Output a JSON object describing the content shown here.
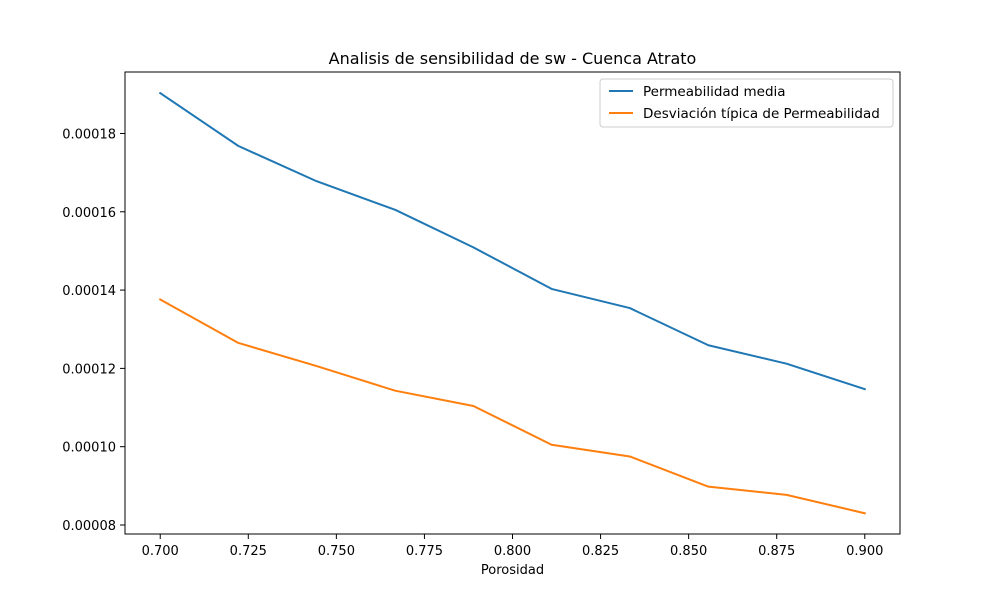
{
  "chart_data": {
    "type": "line",
    "title": "Analisis de sensibilidad de sw - Cuenca Atrato",
    "xlabel": "Porosidad",
    "ylabel": "",
    "x": [
      0.7,
      0.7222,
      0.7444,
      0.7667,
      0.7889,
      0.8111,
      0.8333,
      0.8556,
      0.8778,
      0.9
    ],
    "series": [
      {
        "name": "Permeabilidad media",
        "color": "#1f77b4",
        "values": [
          0.0001903,
          0.0001768,
          0.0001678,
          0.0001605,
          0.0001509,
          0.0001403,
          0.0001354,
          0.0001259,
          0.0001212,
          0.0001147
        ]
      },
      {
        "name": "Desviación típica de Permeabilidad",
        "color": "#ff7f0e",
        "values": [
          0.0001376,
          0.0001265,
          0.0001206,
          0.0001143,
          0.0001104,
          0.0001005,
          9.75e-05,
          8.98e-05,
          8.77e-05,
          8.3e-05
        ]
      }
    ],
    "xlim": [
      0.69,
      0.91
    ],
    "ylim": [
      7.77e-05,
      0.0001957
    ],
    "xticks": [
      0.7,
      0.725,
      0.75,
      0.775,
      0.8,
      0.825,
      0.85,
      0.875,
      0.9
    ],
    "xtick_labels": [
      "0.700",
      "0.725",
      "0.750",
      "0.775",
      "0.800",
      "0.825",
      "0.850",
      "0.875",
      "0.900"
    ],
    "yticks": [
      8e-05,
      0.0001,
      0.00012,
      0.00014,
      0.00016,
      0.00018
    ],
    "ytick_labels": [
      "0.00008",
      "0.00010",
      "0.00012",
      "0.00014",
      "0.00016",
      "0.00018"
    ],
    "grid": false,
    "legend_position": "top-right"
  }
}
